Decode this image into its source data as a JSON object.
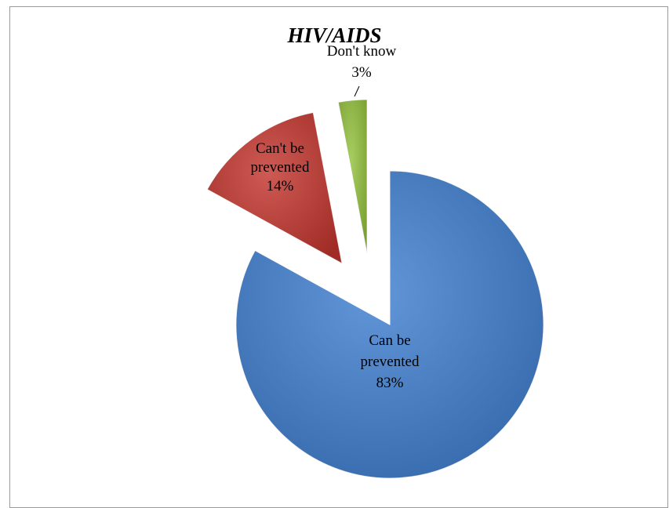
{
  "chart_data": {
    "type": "pie",
    "title": "HIV/AIDS",
    "exploded": true,
    "start_angle_deg": 0,
    "direction": "clockwise",
    "slices": [
      {
        "label_lines": [
          "Can be",
          "prevented",
          "83%"
        ],
        "category": "Can be prevented",
        "value": 83,
        "color": "#3f7fd0"
      },
      {
        "label_lines": [
          "Can't be",
          "prevented",
          "14%"
        ],
        "category": "Can't be prevented",
        "value": 14,
        "color": "#c4362f"
      },
      {
        "label_lines": [
          "Don't know",
          "3%"
        ],
        "category": "Don't know",
        "value": 3,
        "color": "#94c23e"
      }
    ]
  }
}
